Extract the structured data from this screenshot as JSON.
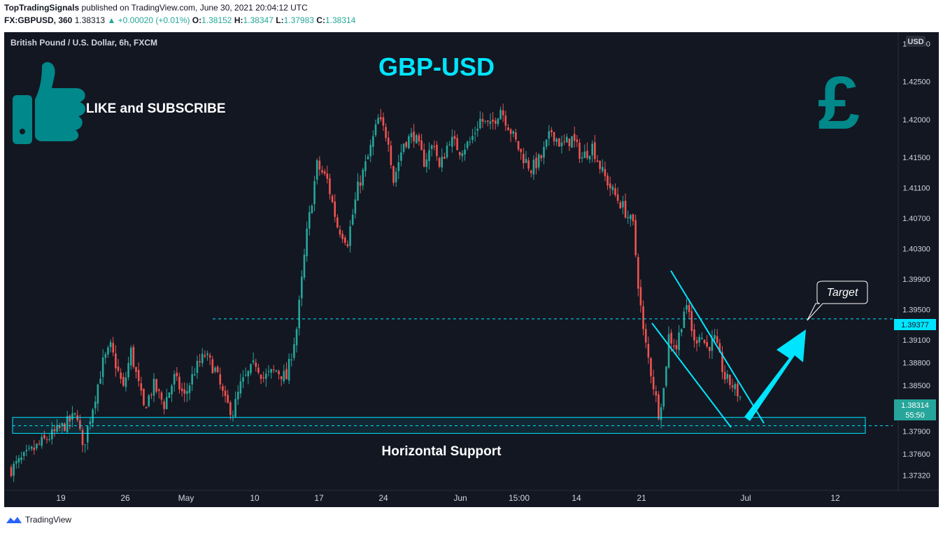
{
  "header": {
    "publisher": "TopTradingSignals",
    "published_text": "published on TradingView.com, June 30, 2021 20:04:12 UTC",
    "symbol": "FX:GBPUSD, 360",
    "last": "1.38313",
    "change": "▲ +0.00020 (+0.01%)",
    "o_label": "O:",
    "o": "1.38152",
    "h_label": "H:",
    "h": "1.38347",
    "l_label": "L:",
    "l": "1.37983",
    "c_label": "C:",
    "c": "1.38314"
  },
  "chart": {
    "instrument": "British Pound / U.S. Dollar, 6h, FXCM",
    "currency_badge": "USD",
    "overlay_title": "GBP-USD",
    "like_text": "LIKE and SUBSCRIBE",
    "pound_symbol": "£",
    "support_label": "Horizontal Support",
    "target_label": "Target",
    "price_label_target": "1.39377",
    "price_label_last": "1.38314",
    "countdown": "55:50"
  },
  "colors": {
    "background": "#131722",
    "up": "#26a69a",
    "down": "#ef5350",
    "accent": "#00e5ff",
    "title": "#00e5ff",
    "icon": "#00888a"
  },
  "footer": {
    "brand": "TradingView"
  },
  "chart_data": {
    "type": "candlestick",
    "title": "British Pound / U.S. Dollar, 6h, FXCM",
    "ylim": [
      1.3712,
      1.4315
    ],
    "y_ticks": [
      "1.43000",
      "1.42500",
      "1.42000",
      "1.41500",
      "1.41100",
      "1.40700",
      "1.40300",
      "1.39900",
      "1.39500",
      "1.39100",
      "1.38800",
      "1.38500",
      "1.37900",
      "1.37600",
      "1.37320"
    ],
    "x_ticks": [
      "19",
      "26",
      "May",
      "10",
      "17",
      "24",
      "Jun",
      "15:00",
      "14",
      "21",
      "Jul",
      "12"
    ],
    "close_path": [
      [
        0,
        1.374
      ],
      [
        12,
        1.3775
      ],
      [
        20,
        1.3795
      ],
      [
        26,
        1.3812
      ],
      [
        28,
        1.3765
      ],
      [
        36,
        1.388
      ],
      [
        39,
        1.39
      ],
      [
        44,
        1.3845
      ],
      [
        47,
        1.3895
      ],
      [
        52,
        1.382
      ],
      [
        56,
        1.385
      ],
      [
        60,
        1.3825
      ],
      [
        64,
        1.386
      ],
      [
        68,
        1.3835
      ],
      [
        72,
        1.387
      ],
      [
        76,
        1.389
      ],
      [
        80,
        1.387
      ],
      [
        84,
        1.3828
      ],
      [
        87,
        1.3815
      ],
      [
        90,
        1.385
      ],
      [
        96,
        1.388
      ],
      [
        99,
        1.386
      ],
      [
        104,
        1.387
      ],
      [
        108,
        1.386
      ],
      [
        112,
        1.3925
      ],
      [
        116,
        1.405
      ],
      [
        120,
        1.414
      ],
      [
        124,
        1.412
      ],
      [
        128,
        1.406
      ],
      [
        132,
        1.404
      ],
      [
        136,
        1.411
      ],
      [
        140,
        1.415
      ],
      [
        144,
        1.42
      ],
      [
        148,
        1.4175
      ],
      [
        150,
        1.412
      ],
      [
        154,
        1.417
      ],
      [
        158,
        1.418
      ],
      [
        162,
        1.4145
      ],
      [
        166,
        1.417
      ],
      [
        168,
        1.4135
      ],
      [
        172,
        1.4175
      ],
      [
        176,
        1.416
      ],
      [
        180,
        1.417
      ],
      [
        184,
        1.42
      ],
      [
        188,
        1.419
      ],
      [
        192,
        1.4215
      ],
      [
        196,
        1.4185
      ],
      [
        200,
        1.4155
      ],
      [
        204,
        1.4135
      ],
      [
        208,
        1.415
      ],
      [
        212,
        1.4185
      ],
      [
        216,
        1.4165
      ],
      [
        220,
        1.4175
      ],
      [
        224,
        1.415
      ],
      [
        228,
        1.4165
      ],
      [
        232,
        1.413
      ],
      [
        236,
        1.4105
      ],
      [
        240,
        1.4085
      ],
      [
        244,
        1.406
      ],
      [
        246,
        1.3985
      ],
      [
        248,
        1.392
      ],
      [
        252,
        1.385
      ],
      [
        254,
        1.3815
      ],
      [
        256,
        1.3845
      ],
      [
        258,
        1.3915
      ],
      [
        261,
        1.39
      ],
      [
        264,
        1.395
      ],
      [
        266,
        1.3945
      ],
      [
        268,
        1.3905
      ],
      [
        270,
        1.392
      ],
      [
        273,
        1.39
      ],
      [
        276,
        1.391
      ],
      [
        280,
        1.386
      ],
      [
        283,
        1.385
      ],
      [
        286,
        1.3835
      ]
    ],
    "annotations": {
      "horizontal_support_zone": [
        1.3787,
        1.3808
      ],
      "support_line": 1.3797,
      "target_line": 1.39377,
      "last_price": 1.38314
    }
  }
}
